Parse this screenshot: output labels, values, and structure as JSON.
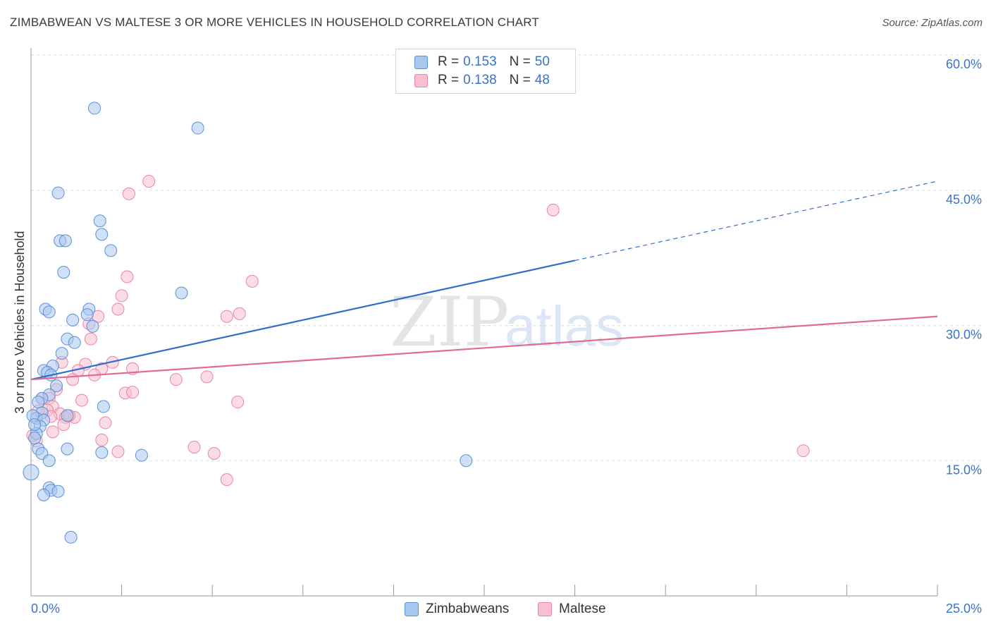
{
  "title": "ZIMBABWEAN VS MALTESE 3 OR MORE VEHICLES IN HOUSEHOLD CORRELATION CHART",
  "source": "Source: ZipAtlas.com",
  "watermark": {
    "zip": "ZIP",
    "atlas": "atlas"
  },
  "legend_top": {
    "rows": [
      {
        "r_label": "R =",
        "r_value": "0.153",
        "n_label": "N =",
        "n_value": "50"
      },
      {
        "r_label": "R =",
        "r_value": "0.138",
        "n_label": "N =",
        "n_value": "48"
      }
    ]
  },
  "legend_bottom": [
    "Zimbabweans",
    "Maltese"
  ],
  "colors": {
    "blue_fill": "#a9c8f0",
    "blue_stroke": "#5b8fd6",
    "blue_line": "#2f6fcc",
    "pink_fill": "#f7bfd0",
    "pink_stroke": "#e985a5",
    "pink_line": "#e06a95",
    "axis_label": "#3a73c8",
    "grid": "#dddddd"
  },
  "chart_data": {
    "type": "scatter",
    "title": "ZIMBABWEAN VS MALTESE 3 OR MORE VEHICLES IN HOUSEHOLD CORRELATION CHART",
    "xlabel": "",
    "ylabel": "3 or more Vehicles in Household",
    "xlim": [
      0,
      25
    ],
    "ylim": [
      0,
      60
    ],
    "x_tick_labels": [
      "0.0%",
      "25.0%"
    ],
    "y_ticks": [
      15,
      30,
      45,
      60
    ],
    "y_tick_labels": [
      "15.0%",
      "30.0%",
      "45.0%",
      "60.0%"
    ],
    "grid": true,
    "legend_position": "top-center",
    "series": [
      {
        "name": "Zimbabweans",
        "r": 0.153,
        "n": 50,
        "trend": {
          "x0": 0,
          "y0": 24.0,
          "x1": 15,
          "y1": 37.2,
          "dash_x1": 25,
          "dash_y1": 46.0
        },
        "points": [
          [
            1.75,
            54.1
          ],
          [
            4.6,
            51.9
          ],
          [
            0.75,
            44.7
          ],
          [
            1.9,
            41.6
          ],
          [
            1.95,
            40.1
          ],
          [
            0.8,
            39.4
          ],
          [
            0.95,
            39.4
          ],
          [
            2.2,
            38.3
          ],
          [
            0.9,
            35.9
          ],
          [
            4.15,
            33.6
          ],
          [
            0.4,
            31.8
          ],
          [
            0.5,
            31.5
          ],
          [
            1.6,
            31.8
          ],
          [
            1.55,
            31.2
          ],
          [
            1.15,
            30.6
          ],
          [
            1.7,
            29.9
          ],
          [
            1.0,
            28.5
          ],
          [
            1.2,
            28.1
          ],
          [
            0.85,
            26.9
          ],
          [
            0.6,
            25.5
          ],
          [
            0.35,
            25.0
          ],
          [
            0.45,
            24.8
          ],
          [
            0.55,
            24.5
          ],
          [
            0.7,
            23.3
          ],
          [
            0.5,
            22.3
          ],
          [
            0.3,
            21.9
          ],
          [
            0.2,
            21.5
          ],
          [
            2.0,
            21.0
          ],
          [
            0.3,
            20.3
          ],
          [
            1.0,
            20.0
          ],
          [
            0.15,
            19.7
          ],
          [
            0.35,
            19.5
          ],
          [
            0.25,
            18.8
          ],
          [
            0.15,
            18.0
          ],
          [
            0.1,
            17.5
          ],
          [
            0.2,
            16.3
          ],
          [
            0.3,
            15.8
          ],
          [
            1.0,
            16.3
          ],
          [
            1.95,
            15.9
          ],
          [
            3.05,
            15.6
          ],
          [
            0.5,
            15.0
          ],
          [
            12.0,
            15.0
          ],
          [
            0.0,
            13.7
          ],
          [
            0.5,
            12.0
          ],
          [
            0.55,
            11.7
          ],
          [
            0.35,
            11.2
          ],
          [
            0.75,
            11.6
          ],
          [
            1.1,
            6.5
          ],
          [
            0.05,
            20.0
          ],
          [
            0.1,
            19.0
          ]
        ]
      },
      {
        "name": "Maltese",
        "r": 0.138,
        "n": 48,
        "trend": {
          "x0": 0,
          "y0": 24.0,
          "x1": 25,
          "y1": 31.0
        },
        "points": [
          [
            3.25,
            46.0
          ],
          [
            2.7,
            44.6
          ],
          [
            14.4,
            42.8
          ],
          [
            2.65,
            35.4
          ],
          [
            6.1,
            34.9
          ],
          [
            2.5,
            33.3
          ],
          [
            2.4,
            31.8
          ],
          [
            5.75,
            31.3
          ],
          [
            5.4,
            31.0
          ],
          [
            1.85,
            31.0
          ],
          [
            1.6,
            30.2
          ],
          [
            1.65,
            28.5
          ],
          [
            0.85,
            25.9
          ],
          [
            1.5,
            25.7
          ],
          [
            2.25,
            25.9
          ],
          [
            1.3,
            25.0
          ],
          [
            1.95,
            25.2
          ],
          [
            2.8,
            25.2
          ],
          [
            1.75,
            24.5
          ],
          [
            4.0,
            24.0
          ],
          [
            4.85,
            24.3
          ],
          [
            1.15,
            24.0
          ],
          [
            0.7,
            22.9
          ],
          [
            2.6,
            22.5
          ],
          [
            2.8,
            22.6
          ],
          [
            0.3,
            21.9
          ],
          [
            0.5,
            21.9
          ],
          [
            1.4,
            21.7
          ],
          [
            0.6,
            21.0
          ],
          [
            0.45,
            20.6
          ],
          [
            0.8,
            20.2
          ],
          [
            5.7,
            21.5
          ],
          [
            0.95,
            19.8
          ],
          [
            0.55,
            19.9
          ],
          [
            1.2,
            19.8
          ],
          [
            2.05,
            19.2
          ],
          [
            0.9,
            19.0
          ],
          [
            1.95,
            17.3
          ],
          [
            0.15,
            17.2
          ],
          [
            4.5,
            16.5
          ],
          [
            2.4,
            16.0
          ],
          [
            5.05,
            15.8
          ],
          [
            5.4,
            12.9
          ],
          [
            21.3,
            16.1
          ],
          [
            0.05,
            17.8
          ],
          [
            0.2,
            20.5
          ],
          [
            1.05,
            20.0
          ],
          [
            0.6,
            18.2
          ]
        ]
      }
    ]
  }
}
